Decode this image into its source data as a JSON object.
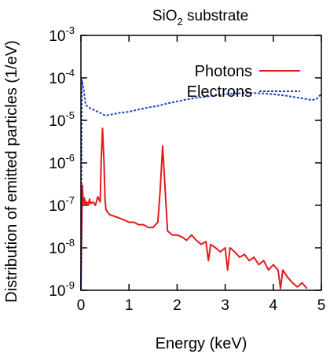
{
  "chart_data": {
    "type": "line",
    "title": "SiO2 substrate",
    "title_parts": {
      "main": "SiO",
      "sub": "2",
      "rest": " substrate"
    },
    "xlabel": "Energy (keV)",
    "ylabel": "Distribution of emitted particles (1/eV)",
    "xlim": [
      0,
      5
    ],
    "ylim": [
      1e-09,
      0.001
    ],
    "yscale": "log",
    "grid": false,
    "legend_position": "top-right",
    "x_ticks": [
      {
        "value": 0,
        "label": "0"
      },
      {
        "value": 1,
        "label": "1"
      },
      {
        "value": 2,
        "label": "2"
      },
      {
        "value": 3,
        "label": "3"
      },
      {
        "value": 4,
        "label": "4"
      },
      {
        "value": 5,
        "label": "5"
      }
    ],
    "y_ticks": [
      {
        "value": 1e-09,
        "base": "10",
        "exp": "-9"
      },
      {
        "value": 1e-08,
        "base": "10",
        "exp": "-8"
      },
      {
        "value": 1e-07,
        "base": "10",
        "exp": "-7"
      },
      {
        "value": 1e-06,
        "base": "10",
        "exp": "-6"
      },
      {
        "value": 1e-05,
        "base": "10",
        "exp": "-5"
      },
      {
        "value": 0.0001,
        "base": "10",
        "exp": "-4"
      },
      {
        "value": 0.001,
        "base": "10",
        "exp": "-3"
      }
    ],
    "series": [
      {
        "name": "Photons",
        "color": "#e41a1c",
        "dash": "solid",
        "x": [
          0.0,
          0.03,
          0.05,
          0.07,
          0.1,
          0.12,
          0.15,
          0.18,
          0.2,
          0.25,
          0.3,
          0.35,
          0.4,
          0.42,
          0.45,
          0.48,
          0.5,
          0.52,
          0.55,
          0.6,
          0.7,
          0.8,
          0.9,
          1.0,
          1.1,
          1.2,
          1.3,
          1.4,
          1.5,
          1.6,
          1.65,
          1.7,
          1.75,
          1.8,
          1.9,
          2.0,
          2.1,
          2.2,
          2.3,
          2.4,
          2.5,
          2.6,
          2.65,
          2.7,
          2.8,
          2.9,
          3.0,
          3.05,
          3.1,
          3.2,
          3.3,
          3.4,
          3.5,
          3.6,
          3.7,
          3.8,
          3.9,
          4.0,
          4.1,
          4.15,
          4.2,
          4.3,
          4.4,
          4.5,
          4.6,
          4.7
        ],
        "y": [
          1.1e-09,
          3e-07,
          1e-07,
          1.5e-07,
          1e-07,
          1.2e-07,
          1e-07,
          1.4e-07,
          1.1e-07,
          1.2e-07,
          1e-07,
          1.6e-07,
          1.2e-07,
          1e-06,
          6.5e-06,
          1e-06,
          1.5e-07,
          8e-08,
          7e-08,
          6e-08,
          5.5e-08,
          5e-08,
          4.5e-08,
          4e-08,
          4e-08,
          3.5e-08,
          3.5e-08,
          3e-08,
          3e-08,
          4e-08,
          2.5e-07,
          2.5e-06,
          2.5e-07,
          2.5e-08,
          2e-08,
          2e-08,
          1.8e-08,
          1.5e-08,
          2e-08,
          1.5e-08,
          1.2e-08,
          1.4e-08,
          5e-09,
          1.2e-08,
          1e-08,
          8e-09,
          1e-08,
          3e-09,
          1e-08,
          8e-09,
          6e-09,
          7e-09,
          5e-09,
          6e-09,
          4e-09,
          5e-09,
          3e-09,
          4e-09,
          3e-09,
          1.1e-09,
          3e-09,
          2e-09,
          1.5e-09,
          1.2e-09,
          1.5e-09,
          1.1e-09
        ]
      },
      {
        "name": "Electrons",
        "color": "#1f3fd8",
        "dash": "dotted",
        "x": [
          0.0,
          0.02,
          0.05,
          0.1,
          0.2,
          0.3,
          0.4,
          0.5,
          0.6,
          0.8,
          1.0,
          1.2,
          1.4,
          1.6,
          1.8,
          2.0,
          2.2,
          2.4,
          2.6,
          2.8,
          3.0,
          3.2,
          3.4,
          3.6,
          3.8,
          4.0,
          4.2,
          4.4,
          4.6,
          4.8,
          4.9,
          5.0
        ],
        "y": [
          1e-09,
          9e-05,
          6e-05,
          2.3e-05,
          1.9e-05,
          1.7e-05,
          1.5e-05,
          1.3e-05,
          1.35e-05,
          1.5e-05,
          1.6e-05,
          1.8e-05,
          2e-05,
          2.2e-05,
          2.5e-05,
          2.8e-05,
          3.1e-05,
          3.4e-05,
          3.6e-05,
          3.9e-05,
          4.1e-05,
          4.3e-05,
          4.4e-05,
          4.4e-05,
          4.3e-05,
          4.1e-05,
          3.9e-05,
          3.6e-05,
          3.3e-05,
          3e-05,
          3.2e-05,
          4.2e-05
        ]
      }
    ]
  }
}
